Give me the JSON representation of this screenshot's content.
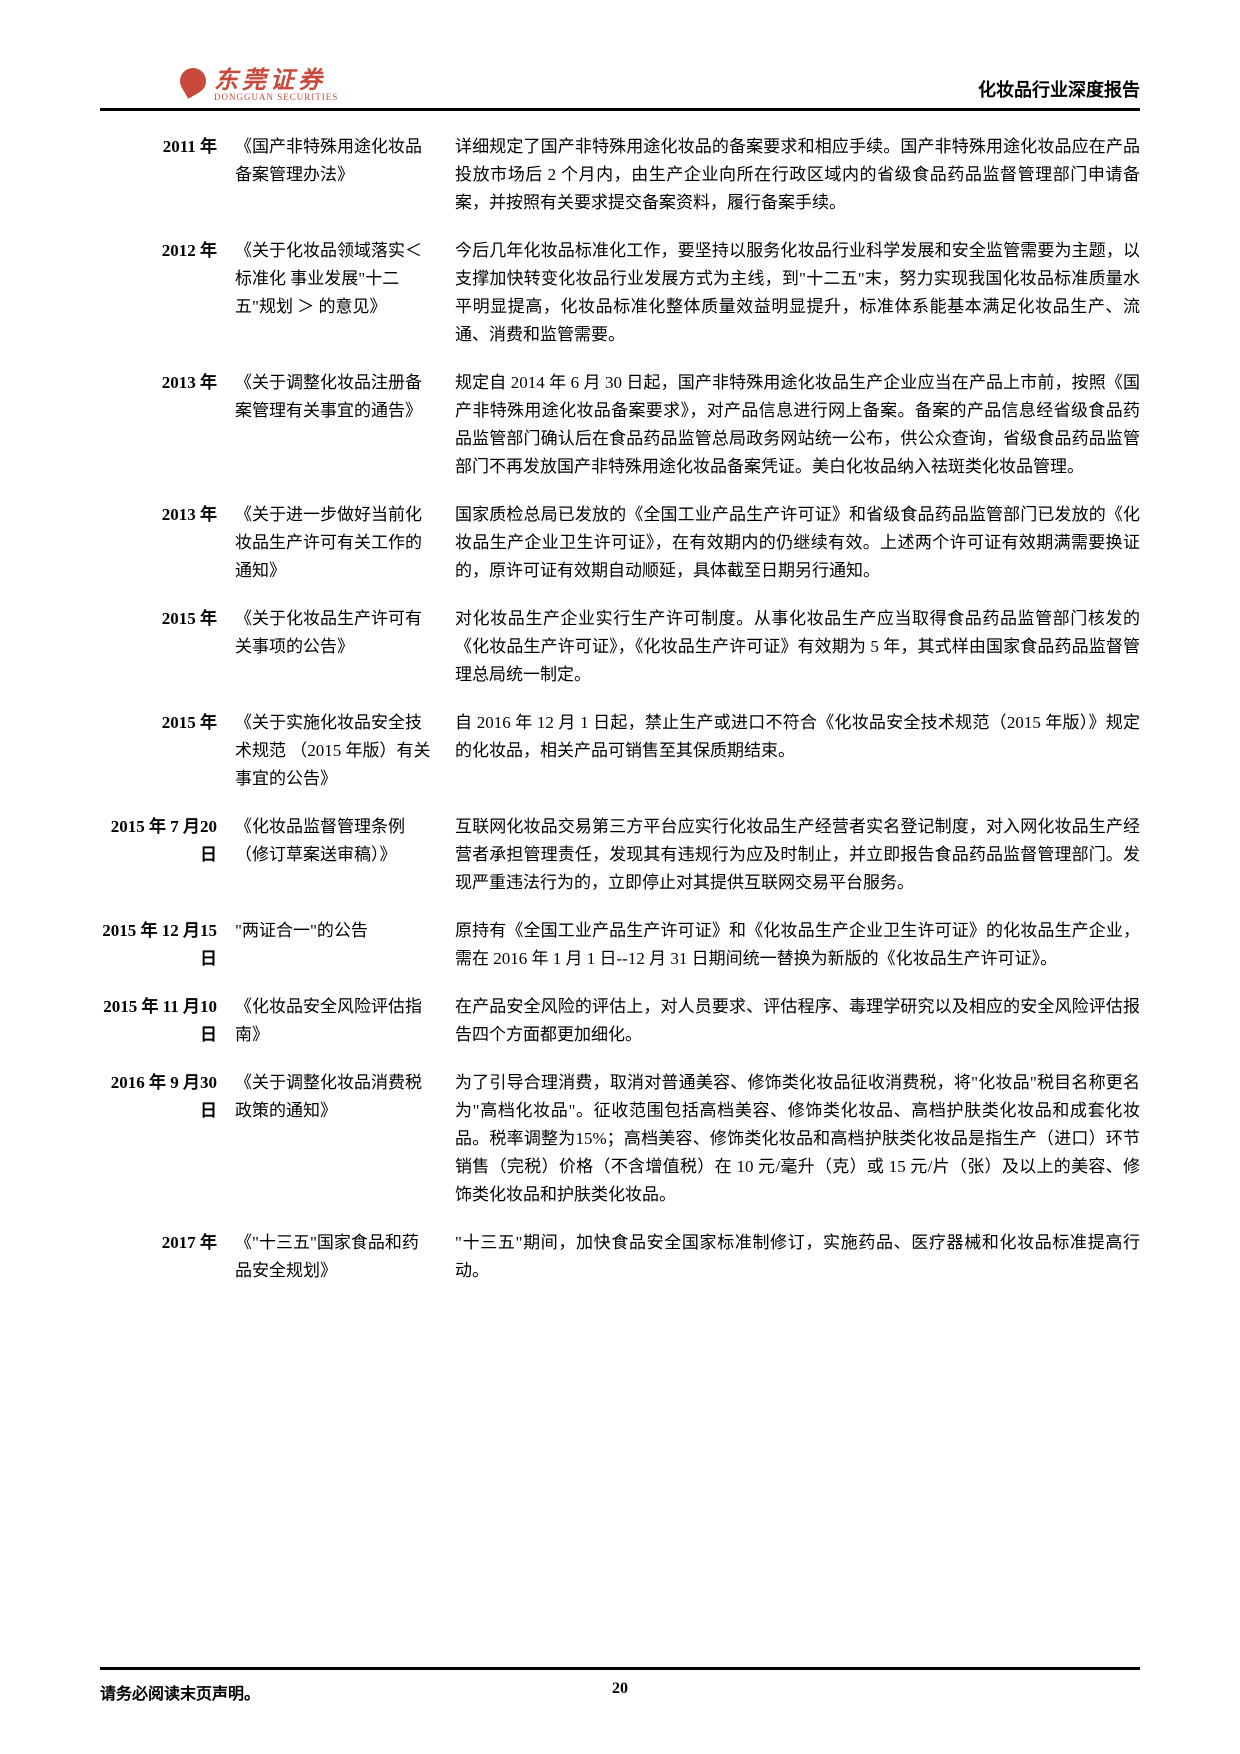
{
  "header": {
    "logo_text": "东莞证券",
    "logo_sub": "DONGGUAN SECURITIES",
    "right": "化妆品行业深度报告"
  },
  "rows": [
    {
      "year": "2011 年",
      "title": "《国产非特殊用途化妆品备案管理办法》",
      "desc": "详细规定了国产非特殊用途化妆品的备案要求和相应手续。国产非特殊用途化妆品应在产品投放市场后 2 个月内，由生产企业向所在行政区域内的省级食品药品监督管理部门申请备案，并按照有关要求提交备案资料，履行备案手续。"
    },
    {
      "year": "2012 年",
      "title": "《关于化妆品领域落实＜ 标准化 事业发展\"十二五\"规划 ＞ 的意见》",
      "desc": "今后几年化妆品标准化工作，要坚持以服务化妆品行业科学发展和安全监管需要为主题，以支撑加快转变化妆品行业发展方式为主线，到\"十二五\"末，努力实现我国化妆品标准质量水平明显提高，化妆品标准化整体质量效益明显提升，标准体系能基本满足化妆品生产、流通、消费和监管需要。"
    },
    {
      "year": "2013 年",
      "title": "《关于调整化妆品注册备案管理有关事宜的通告》",
      "desc": "规定自 2014 年 6 月 30 日起，国产非特殊用途化妆品生产企业应当在产品上市前，按照《国产非特殊用途化妆品备案要求》，对产品信息进行网上备案。备案的产品信息经省级食品药品监管部门确认后在食品药品监管总局政务网站统一公布，供公众查询，省级食品药品监管部门不再发放国产非特殊用途化妆品备案凭证。美白化妆品纳入祛斑类化妆品管理。"
    },
    {
      "year": "2013 年",
      "title": "《关于进一步做好当前化妆品生产许可有关工作的通知》",
      "desc": "国家质检总局已发放的《全国工业产品生产许可证》和省级食品药品监管部门已发放的《化妆品生产企业卫生许可证》，在有效期内的仍继续有效。上述两个许可证有效期满需要换证的，原许可证有效期自动顺延，具体截至日期另行通知。"
    },
    {
      "year": "2015 年",
      "title": "《关于化妆品生产许可有关事项的公告》",
      "desc": "对化妆品生产企业实行生产许可制度。从事化妆品生产应当取得食品药品监管部门核发的《化妆品生产许可证》，《化妆品生产许可证》有效期为 5 年，其式样由国家食品药品监督管理总局统一制定。"
    },
    {
      "year": "2015 年",
      "title": "《关于实施化妆品安全技术规范 （2015 年版）有关事宜的公告》",
      "desc": "自 2016 年 12 月 1 日起，禁止生产或进口不符合《化妆品安全技术规范（2015 年版）》规定的化妆品，相关产品可销售至其保质期结束。"
    },
    {
      "year": "2015 年 7 月20 日",
      "title": "《化妆品监督管理条例（修订草案送审稿）》",
      "desc": "互联网化妆品交易第三方平台应实行化妆品生产经营者实名登记制度，对入网化妆品生产经营者承担管理责任，发现其有违规行为应及时制止，并立即报告食品药品监督管理部门。发现严重违法行为的，立即停止对其提供互联网交易平台服务。"
    },
    {
      "year": "2015 年 12 月15 日",
      "title": "\"两证合一\"的公告",
      "desc": "原持有《全国工业产品生产许可证》和《化妆品生产企业卫生许可证》的化妆品生产企业，需在 2016 年 1 月 1 日--12 月 31 日期间统一替换为新版的《化妆品生产许可证》。"
    },
    {
      "year": "2015 年 11 月10 日",
      "title": "《化妆品安全风险评估指南》",
      "desc": "在产品安全风险的评估上，对人员要求、评估程序、毒理学研究以及相应的安全风险评估报告四个方面都更加细化。"
    },
    {
      "year": "2016 年 9 月30 日",
      "title": "《关于调整化妆品消费税政策的通知》",
      "desc": "为了引导合理消费，取消对普通美容、修饰类化妆品征收消费税，将\"化妆品\"税目名称更名为\"高档化妆品\"。征收范围包括高档美容、修饰类化妆品、高档护肤类化妆品和成套化妆品。税率调整为15%；高档美容、修饰类化妆品和高档护肤类化妆品是指生产（进口）环节销售（完税）价格（不含增值税）在 10 元/毫升（克）或 15 元/片（张）及以上的美容、修饰类化妆品和护肤类化妆品。"
    },
    {
      "year": "2017 年",
      "title": "《\"十三五\"国家食品和药品安全规划》",
      "desc": "\"十三五\"期间，加快食品安全国家标准制修订，实施药品、医疗器械和化妆品标准提高行动。"
    }
  ],
  "footer": {
    "left": "请务必阅读末页声明。",
    "page": "20"
  }
}
